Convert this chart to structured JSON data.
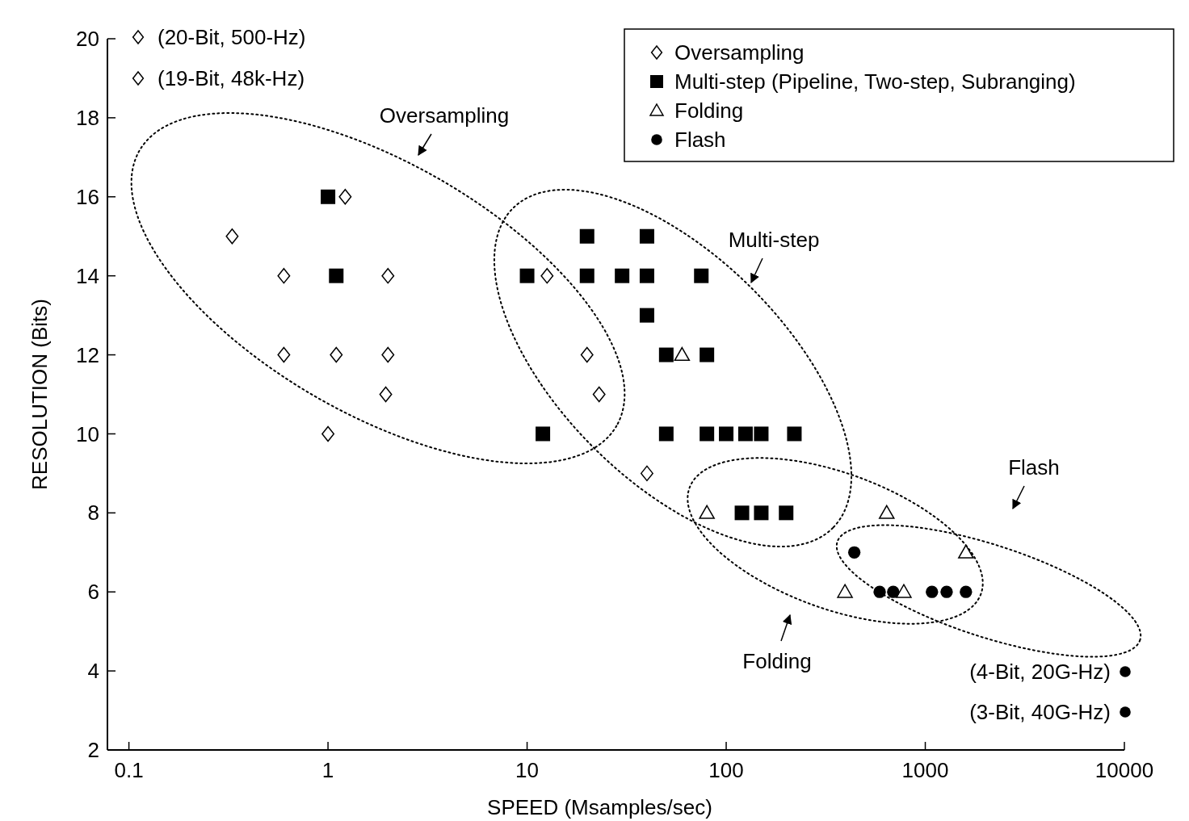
{
  "chart_data": {
    "type": "scatter",
    "xlabel": "SPEED (Msamples/sec)",
    "ylabel": "RESOLUTION (Bits)",
    "log": "x",
    "xlim": [
      0.078,
      10000
    ],
    "xticks": [
      0.1,
      1,
      10,
      100,
      1000,
      10000
    ],
    "ylim": [
      2,
      20
    ],
    "yticks": [
      2,
      4,
      6,
      8,
      10,
      12,
      14,
      16,
      18,
      20
    ],
    "grid": false,
    "legend": "top right",
    "series": [
      {
        "name": "Oversampling",
        "color": "#000000",
        "marker": "diamond",
        "x": [
          1.22,
          0.33,
          0.6,
          2,
          0.6,
          1.1,
          2,
          1.95,
          1,
          12.6,
          20,
          23,
          40
        ],
        "values": [
          16,
          15,
          14,
          14,
          12,
          12,
          12,
          11,
          10,
          14,
          12,
          11,
          9
        ]
      },
      {
        "name": "Multi-step (Pipeline, Two-step, Subranging)",
        "color": "#000000",
        "marker": "square",
        "x": [
          1,
          1.1,
          20,
          40,
          10,
          20,
          30,
          40,
          75,
          40,
          50,
          80,
          12,
          50,
          80,
          100,
          125,
          150,
          220,
          120,
          150,
          200
        ],
        "values": [
          16,
          14,
          15,
          15,
          14,
          14,
          14,
          14,
          14,
          13,
          12,
          12,
          10,
          10,
          10,
          10,
          10,
          10,
          10,
          8,
          8,
          8
        ]
      },
      {
        "name": "Folding",
        "color": "#000000",
        "marker": "triangle",
        "x": [
          60,
          80,
          640,
          1600,
          395,
          780
        ],
        "values": [
          12,
          8,
          8,
          7,
          6,
          6
        ]
      },
      {
        "name": "Flash",
        "color": "#000000",
        "marker": "circle",
        "x": [
          440,
          590,
          690,
          1080,
          1280,
          1600
        ],
        "values": [
          7,
          6,
          6,
          6,
          6,
          6
        ]
      }
    ],
    "annotations": [
      "(20-Bit, 500-Hz)",
      "(19-Bit, 48k-Hz)",
      "(4-Bit, 20G-Hz)",
      "(3-Bit, 40G-Hz)",
      "Oversampling",
      "Multi-step",
      "Folding",
      "Flash"
    ]
  }
}
